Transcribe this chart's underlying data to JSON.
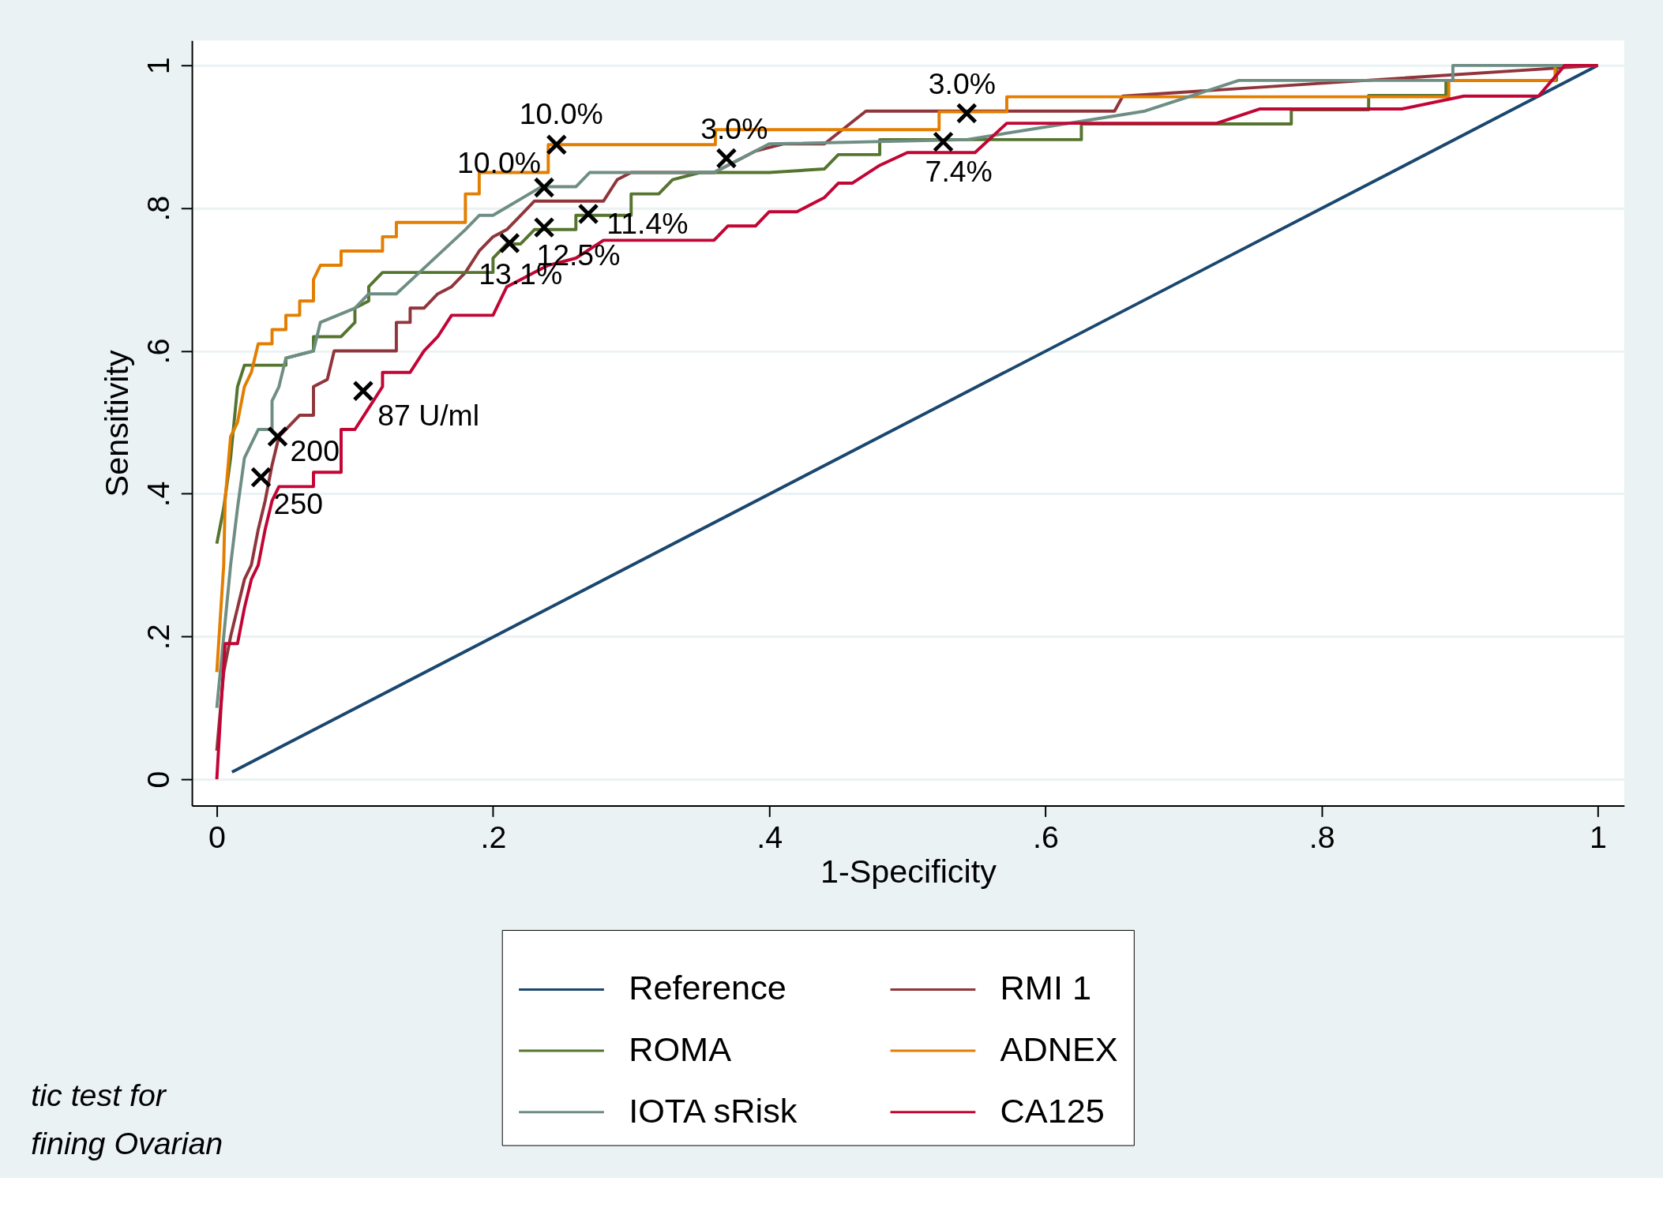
{
  "chart_data": {
    "type": "line",
    "xlabel": "1-Specificity",
    "ylabel": "Sensitivity",
    "xlim": [
      -0.018,
      1.019
    ],
    "ylim": [
      -0.037,
      1.035
    ],
    "xticks": [
      0,
      {
        "value": 0.2,
        "label": ".2"
      },
      {
        "value": 0.4,
        "label": ".4"
      },
      {
        "value": 0.6,
        "label": ".6"
      },
      {
        "value": 0.8,
        "label": ".8"
      },
      1
    ],
    "yticks": [
      0,
      {
        "value": 0.2,
        "label": ".2"
      },
      {
        "value": 0.4,
        "label": ".4"
      },
      {
        "value": 0.6,
        "label": ".6"
      },
      {
        "value": 0.8,
        "label": ".8"
      },
      1
    ],
    "grid": "y",
    "legend": "bottom",
    "annotations": [
      "tic test for",
      "fining Ovarian",
      {
        "text": "10.0%",
        "x": 0.246,
        "y": 0.889
      },
      {
        "text": "10.0%",
        "x": 0.237,
        "y": 0.829
      },
      {
        "text": "13.1%",
        "x": 0.212,
        "y": 0.751
      },
      {
        "text": "12.5%",
        "x": 0.237,
        "y": 0.773
      },
      {
        "text": "11.4%",
        "x": 0.269,
        "y": 0.792
      },
      {
        "text": "3.0%",
        "x": 0.369,
        "y": 0.87
      },
      {
        "text": "3.0%",
        "x": 0.543,
        "y": 0.933
      },
      {
        "text": "7.4%",
        "x": 0.526,
        "y": 0.893
      },
      {
        "text": "87 U/ml",
        "x": 0.106,
        "y": 0.544
      },
      {
        "text": "200",
        "x": 0.044,
        "y": 0.48
      },
      {
        "text": "250",
        "x": 0.032,
        "y": 0.423
      }
    ],
    "series": [
      {
        "name": "Reference",
        "color": "#1a476f",
        "x": [
          0.011,
          1
        ],
        "values": [
          0.01,
          1
        ]
      },
      {
        "name": "RMI 1",
        "color": "#90353b",
        "x": [
          0,
          0.005,
          0.01,
          0.015,
          0.02,
          0.025,
          0.03,
          0.035,
          0.04,
          0.045,
          0.06,
          0.07,
          0.07,
          0.08,
          0.085,
          0.13,
          0.13,
          0.14,
          0.14,
          0.15,
          0.16,
          0.17,
          0.18,
          0.19,
          0.2,
          0.21,
          0.22,
          0.23,
          0.28,
          0.29,
          0.3,
          0.36,
          0.38,
          0.39,
          0.41,
          0.44,
          0.47,
          0.65,
          0.656,
          1
        ],
        "values": [
          0.04,
          0.15,
          0.2,
          0.24,
          0.28,
          0.3,
          0.35,
          0.39,
          0.44,
          0.48,
          0.51,
          0.51,
          0.55,
          0.56,
          0.6,
          0.6,
          0.64,
          0.64,
          0.66,
          0.66,
          0.68,
          0.69,
          0.71,
          0.74,
          0.76,
          0.77,
          0.79,
          0.81,
          0.81,
          0.84,
          0.85,
          0.85,
          0.87,
          0.88,
          0.89,
          0.89,
          0.936,
          0.936,
          0.957,
          1
        ]
      },
      {
        "name": "ROMA",
        "color": "#55752f",
        "x": [
          0,
          0.005,
          0.01,
          0.015,
          0.02,
          0.05,
          0.05,
          0.07,
          0.07,
          0.09,
          0.1,
          0.1,
          0.11,
          0.11,
          0.12,
          0.2,
          0.2,
          0.21,
          0.22,
          0.23,
          0.26,
          0.26,
          0.3,
          0.3,
          0.32,
          0.33,
          0.35,
          0.4,
          0.44,
          0.45,
          0.48,
          0.48,
          0.626,
          0.626,
          0.778,
          0.778,
          0.834,
          0.834,
          0.89,
          0.89,
          0.97,
          0.97,
          1
        ],
        "values": [
          0.33,
          0.38,
          0.45,
          0.55,
          0.58,
          0.58,
          0.59,
          0.6,
          0.62,
          0.62,
          0.64,
          0.66,
          0.67,
          0.69,
          0.71,
          0.71,
          0.73,
          0.75,
          0.75,
          0.77,
          0.77,
          0.79,
          0.79,
          0.82,
          0.82,
          0.84,
          0.85,
          0.85,
          0.855,
          0.875,
          0.875,
          0.896,
          0.896,
          0.918,
          0.918,
          0.938,
          0.938,
          0.958,
          0.958,
          0.979,
          0.979,
          1,
          1
        ]
      },
      {
        "name": "ADNEX",
        "color": "#e37e00",
        "x": [
          0,
          0.005,
          0.006,
          0.01,
          0.015,
          0.02,
          0.025,
          0.03,
          0.04,
          0.04,
          0.05,
          0.05,
          0.06,
          0.06,
          0.07,
          0.07,
          0.075,
          0.09,
          0.09,
          0.12,
          0.12,
          0.13,
          0.13,
          0.18,
          0.18,
          0.19,
          0.19,
          0.24,
          0.24,
          0.361,
          0.361,
          0.523,
          0.523,
          0.572,
          0.572,
          0.892,
          0.892,
          0.969,
          0.969,
          1
        ],
        "values": [
          0.15,
          0.3,
          0.39,
          0.48,
          0.5,
          0.55,
          0.57,
          0.61,
          0.61,
          0.63,
          0.63,
          0.65,
          0.65,
          0.67,
          0.67,
          0.7,
          0.72,
          0.72,
          0.74,
          0.74,
          0.76,
          0.76,
          0.78,
          0.78,
          0.82,
          0.82,
          0.85,
          0.85,
          0.889,
          0.889,
          0.91,
          0.91,
          0.935,
          0.935,
          0.956,
          0.956,
          0.979,
          0.979,
          1,
          1
        ]
      },
      {
        "name": "IOTA sRisk",
        "color": "#6e8e84",
        "x": [
          0,
          0.005,
          0.01,
          0.015,
          0.02,
          0.025,
          0.03,
          0.04,
          0.04,
          0.045,
          0.05,
          0.07,
          0.075,
          0.1,
          0.11,
          0.13,
          0.18,
          0.19,
          0.2,
          0.235,
          0.26,
          0.27,
          0.36,
          0.4,
          0.543,
          0.672,
          0.74,
          0.895,
          0.895,
          1
        ],
        "values": [
          0.1,
          0.2,
          0.3,
          0.38,
          0.45,
          0.47,
          0.49,
          0.49,
          0.53,
          0.55,
          0.59,
          0.6,
          0.64,
          0.66,
          0.68,
          0.68,
          0.77,
          0.79,
          0.79,
          0.83,
          0.83,
          0.85,
          0.85,
          0.89,
          0.896,
          0.936,
          0.979,
          0.979,
          1,
          1
        ]
      },
      {
        "name": "CA125",
        "color": "#c10534",
        "x": [
          0,
          0.003,
          0.006,
          0.015,
          0.02,
          0.025,
          0.03,
          0.035,
          0.04,
          0.045,
          0.07,
          0.07,
          0.09,
          0.09,
          0.1,
          0.11,
          0.12,
          0.12,
          0.14,
          0.15,
          0.16,
          0.17,
          0.2,
          0.21,
          0.22,
          0.23,
          0.24,
          0.26,
          0.28,
          0.36,
          0.37,
          0.39,
          0.4,
          0.42,
          0.44,
          0.45,
          0.46,
          0.48,
          0.5,
          0.549,
          0.572,
          0.724,
          0.755,
          0.858,
          0.903,
          0.957,
          0.976,
          1
        ],
        "values": [
          0,
          0.1,
          0.19,
          0.19,
          0.24,
          0.28,
          0.3,
          0.35,
          0.39,
          0.41,
          0.41,
          0.43,
          0.43,
          0.49,
          0.49,
          0.52,
          0.55,
          0.57,
          0.57,
          0.6,
          0.62,
          0.65,
          0.65,
          0.69,
          0.7,
          0.71,
          0.72,
          0.73,
          0.755,
          0.755,
          0.775,
          0.775,
          0.795,
          0.795,
          0.815,
          0.835,
          0.835,
          0.86,
          0.878,
          0.878,
          0.919,
          0.919,
          0.939,
          0.939,
          0.957,
          0.957,
          1,
          1
        ]
      },
      {
        "color": "#000000",
        "type": "scatter",
        "marker": "cross",
        "x": [
          0.246,
          0.237,
          0.212,
          0.237,
          0.269,
          0.369,
          0.543,
          0.526,
          0.106,
          0.044,
          0.032
        ],
        "values": [
          0.889,
          0.829,
          0.751,
          0.773,
          0.792,
          0.87,
          0.933,
          0.893,
          0.544,
          0.48,
          0.423
        ]
      }
    ]
  }
}
